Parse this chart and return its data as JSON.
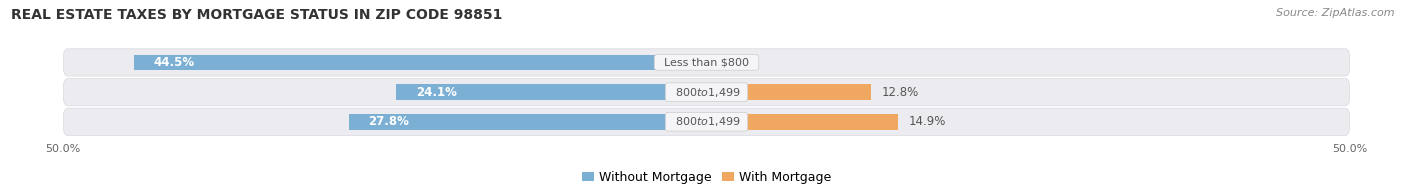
{
  "title": "REAL ESTATE TAXES BY MORTGAGE STATUS IN ZIP CODE 98851",
  "source": "Source: ZipAtlas.com",
  "rows": [
    {
      "label": "Less than $800",
      "without_mortgage": 44.5,
      "with_mortgage": 0.0
    },
    {
      "label": "$800 to $1,499",
      "without_mortgage": 24.1,
      "with_mortgage": 12.8
    },
    {
      "label": "$800 to $1,499",
      "without_mortgage": 27.8,
      "with_mortgage": 14.9
    }
  ],
  "x_max": 50.0,
  "x_min": -50.0,
  "color_without": "#7bafd4",
  "color_with": "#f0a860",
  "color_without_light": "#aecce8",
  "bg_row": "#ebebf0",
  "bg_figure": "#ffffff",
  "bg_label_pill": "#f5f5f8",
  "title_fontsize": 10,
  "source_fontsize": 8,
  "legend_fontsize": 9,
  "bar_label_fontsize": 8.5,
  "category_label_fontsize": 8,
  "axis_label_fontsize": 8,
  "legend_without": "Without Mortgage",
  "legend_with": "With Mortgage"
}
